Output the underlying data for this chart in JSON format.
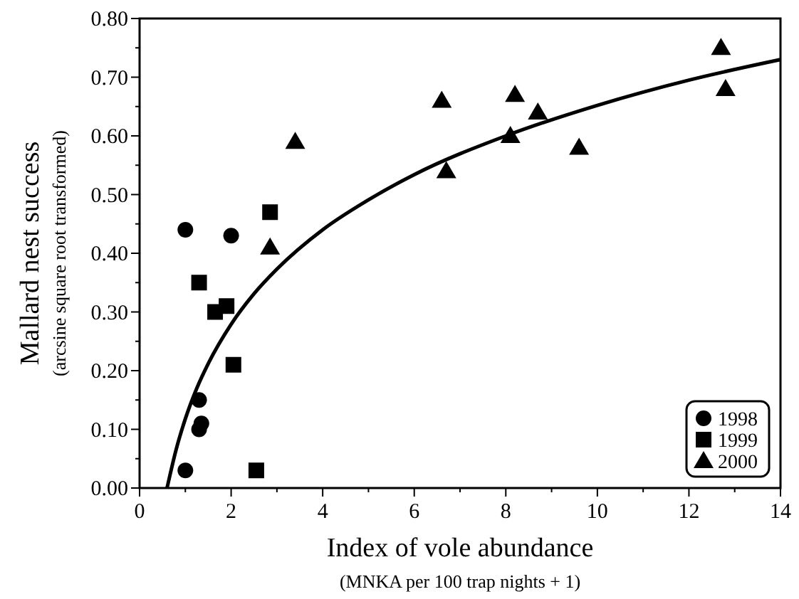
{
  "chart_data": {
    "type": "scatter",
    "xlabel": "Index of vole abundance\n(MNKA per 100 trap nights + 1)",
    "ylabel": "Mallard nest success\n(arcsine square root transformed)",
    "xlim": [
      0,
      14
    ],
    "ylim": [
      0,
      0.8
    ],
    "xticks": [
      0,
      {
        "value": 1,
        "label": null
      },
      2,
      {
        "value": 3,
        "label": null
      },
      4,
      {
        "value": 5,
        "label": null
      },
      6,
      {
        "value": 7,
        "label": null
      },
      8,
      {
        "value": 9,
        "label": null
      },
      10,
      {
        "value": 11,
        "label": null
      },
      12,
      {
        "value": 13,
        "label": null
      },
      14
    ],
    "yticks": [
      {
        "value": 0,
        "label": "0.00"
      },
      {
        "value": 0.05,
        "label": null
      },
      {
        "value": 0.1,
        "label": "0.10"
      },
      {
        "value": 0.15,
        "label": null
      },
      {
        "value": 0.2,
        "label": "0.20"
      },
      {
        "value": 0.25,
        "label": null
      },
      {
        "value": 0.3,
        "label": "0.30"
      },
      {
        "value": 0.35,
        "label": null
      },
      {
        "value": 0.4,
        "label": "0.40"
      },
      {
        "value": 0.45,
        "label": null
      },
      {
        "value": 0.5,
        "label": "0.50"
      },
      {
        "value": 0.55,
        "label": null
      },
      {
        "value": 0.6,
        "label": "0.60"
      },
      {
        "value": 0.65,
        "label": null
      },
      {
        "value": 0.7,
        "label": "0.70"
      },
      {
        "value": 0.75,
        "label": null
      },
      {
        "value": 0.8,
        "label": "0.80"
      }
    ],
    "legend": "bottom right",
    "grid": false,
    "series": [
      {
        "name": "1998",
        "color": "#000000",
        "marker": "circle",
        "x": [
          1.0,
          2.0,
          1.3,
          1.35,
          1.3,
          1.0
        ],
        "values": [
          0.44,
          0.43,
          0.15,
          0.11,
          0.1,
          0.03
        ]
      },
      {
        "name": "1999",
        "color": "#000000",
        "marker": "square",
        "x": [
          1.3,
          1.65,
          1.9,
          2.85,
          2.05,
          2.55
        ],
        "values": [
          0.35,
          0.3,
          0.31,
          0.47,
          0.21,
          0.03
        ]
      },
      {
        "name": "2000",
        "color": "#000000",
        "marker": "triangle",
        "x": [
          3.4,
          2.85,
          6.6,
          6.7,
          8.2,
          8.1,
          8.7,
          9.6,
          12.7,
          12.8
        ],
        "values": [
          0.59,
          0.41,
          0.66,
          0.54,
          0.67,
          0.6,
          0.64,
          0.58,
          0.75,
          0.68
        ]
      },
      {
        "type": "line",
        "color": "#000000",
        "marker": "none",
        "x": [
          0.6,
          0.8,
          1,
          1.25,
          1.5,
          2,
          2.5,
          3,
          4,
          5,
          6,
          8,
          10,
          12,
          14
        ],
        "values": [
          0,
          0.066,
          0.118,
          0.17,
          0.212,
          0.279,
          0.331,
          0.373,
          0.44,
          0.491,
          0.534,
          0.6,
          0.652,
          0.695,
          0.73
        ]
      }
    ]
  }
}
